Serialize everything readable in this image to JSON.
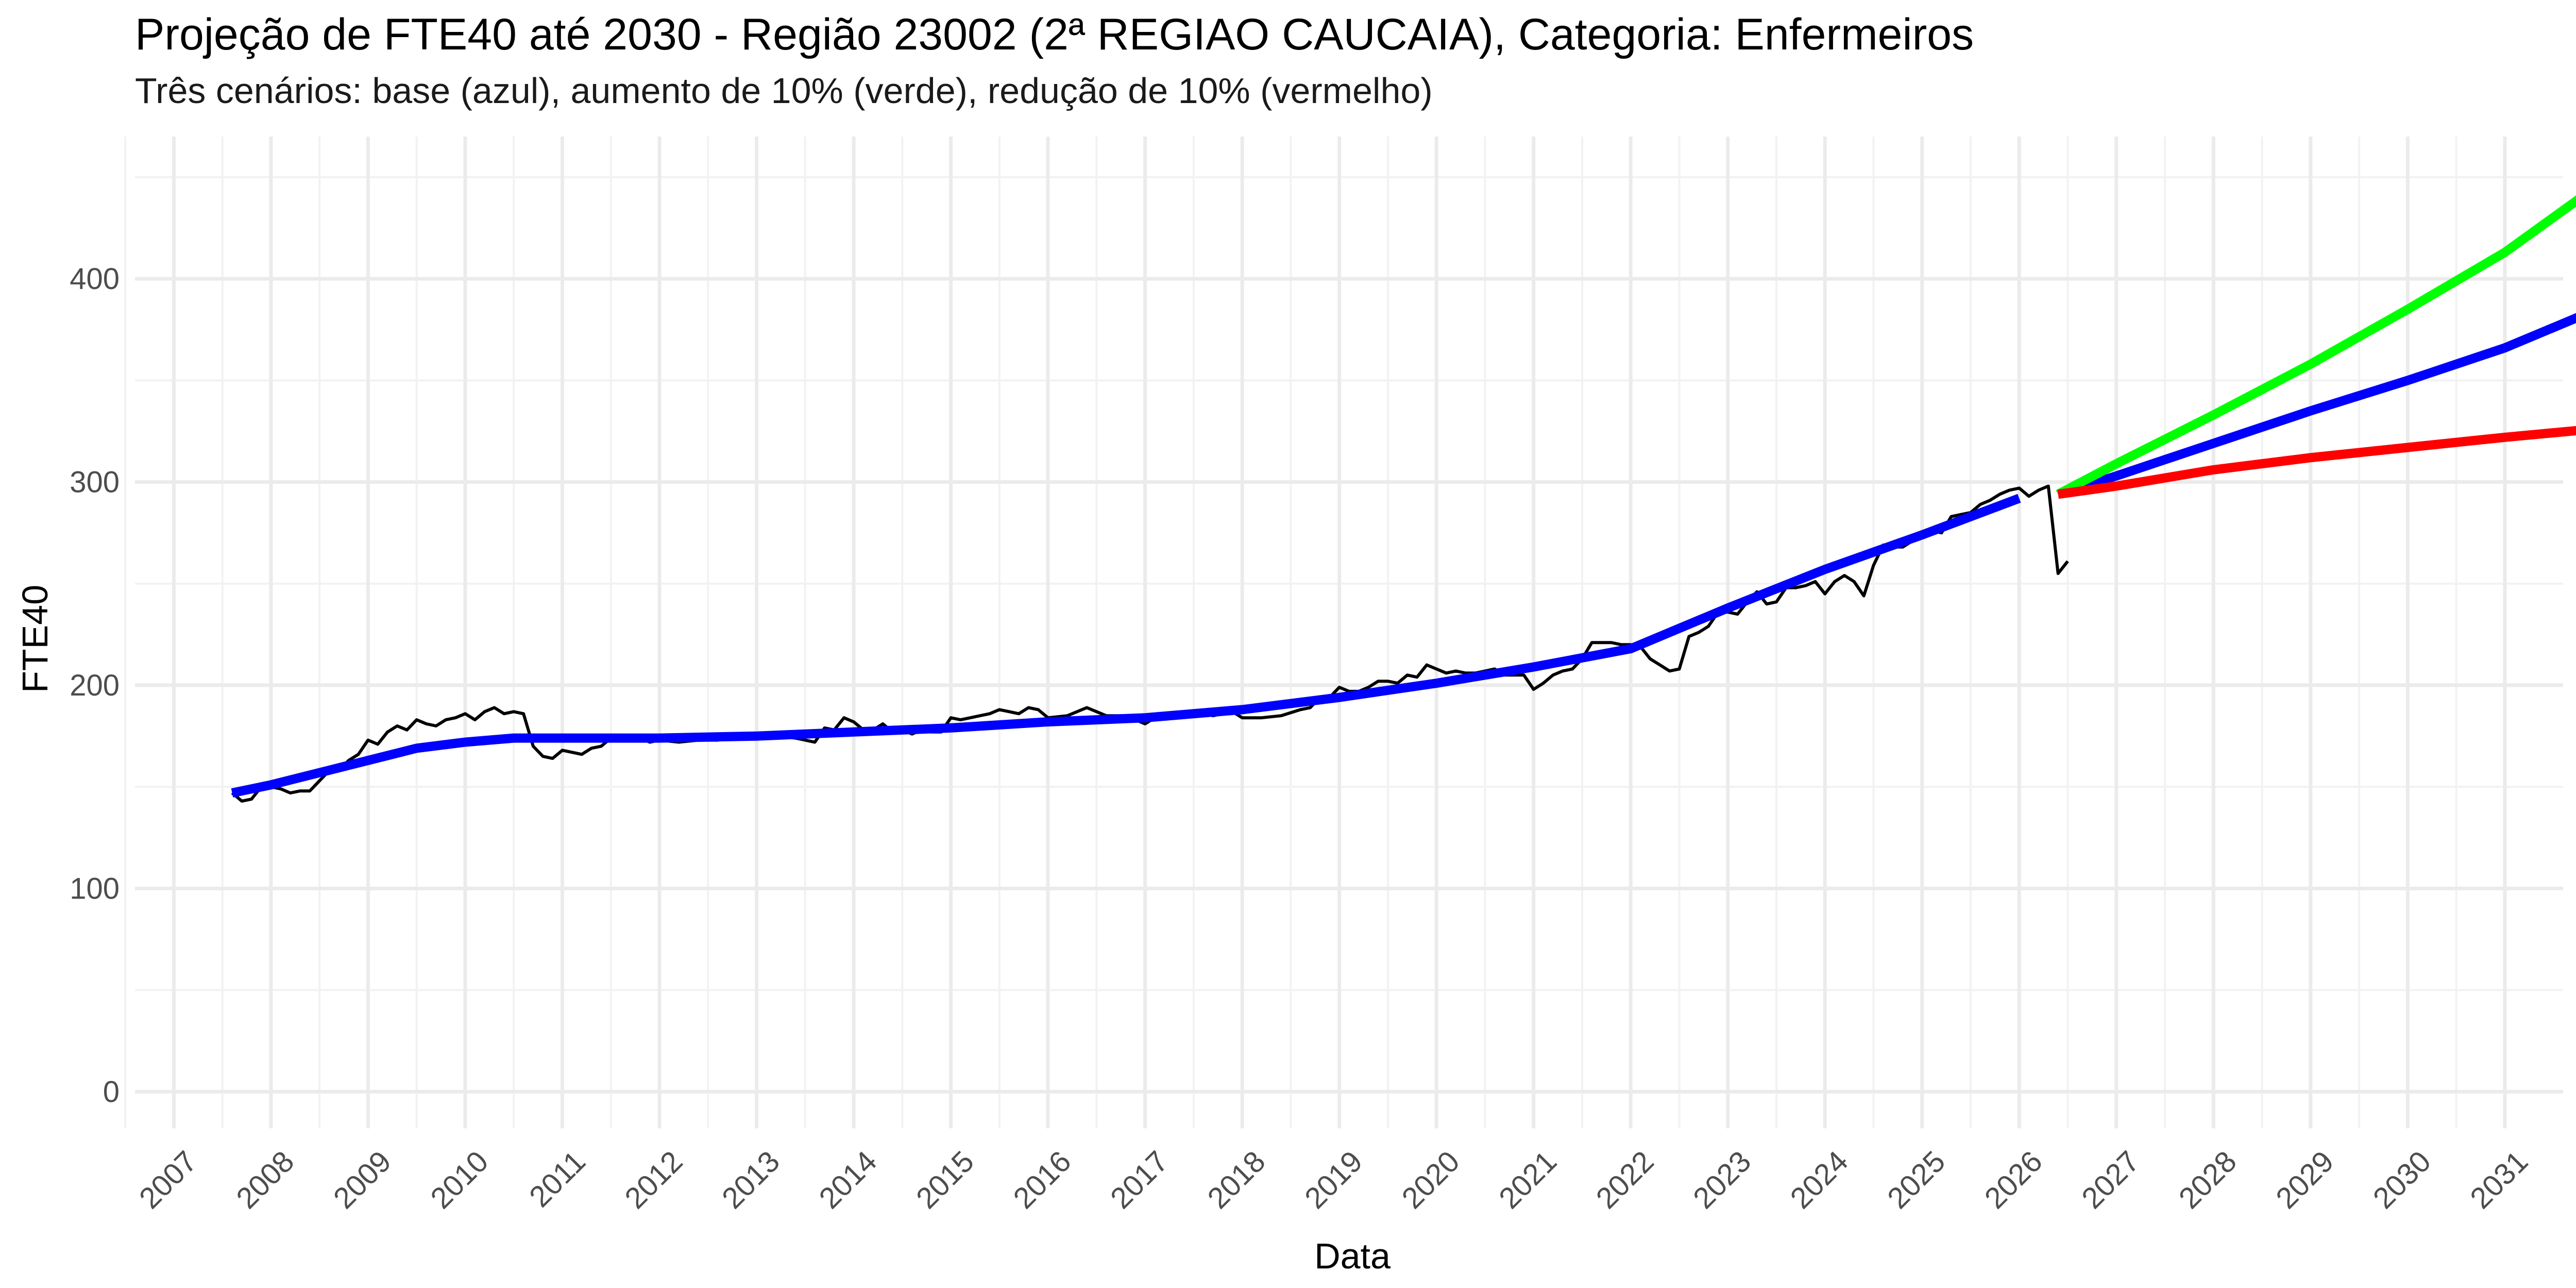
{
  "chart_data": {
    "type": "line",
    "title": "Projeção de FTE40 até 2030 - Região 23002 (2ª REGIAO CAUCAIA), Categoria: Enfermeiros",
    "subtitle": "Três cenários: base (azul), aumento de 10% (verde), redução de 10% (vermelho)",
    "xlabel": "Data",
    "ylabel": "FTE40",
    "xlim": [
      2006.6,
      2031.6
    ],
    "ylim": [
      -18,
      470
    ],
    "x_ticks": [
      2007,
      2008,
      2009,
      2010,
      2011,
      2012,
      2013,
      2014,
      2015,
      2016,
      2017,
      2018,
      2019,
      2020,
      2021,
      2022,
      2023,
      2024,
      2025,
      2026,
      2027,
      2028,
      2029,
      2030,
      2031
    ],
    "y_ticks": [
      0,
      100,
      200,
      300,
      400
    ],
    "grid": true,
    "legend": "none",
    "series": [
      {
        "color": "#000000",
        "line_width": "thin",
        "points": [
          [
            2007.6,
            147
          ],
          [
            2007.7,
            143
          ],
          [
            2007.8,
            144
          ],
          [
            2007.9,
            150
          ],
          [
            2008.0,
            150
          ],
          [
            2008.1,
            149
          ],
          [
            2008.2,
            147
          ],
          [
            2008.3,
            148
          ],
          [
            2008.4,
            148
          ],
          [
            2008.5,
            153
          ],
          [
            2008.6,
            158
          ],
          [
            2008.7,
            158
          ],
          [
            2008.8,
            163
          ],
          [
            2008.9,
            166
          ],
          [
            2009.0,
            173
          ],
          [
            2009.1,
            171
          ],
          [
            2009.2,
            177
          ],
          [
            2009.3,
            180
          ],
          [
            2009.4,
            178
          ],
          [
            2009.5,
            183
          ],
          [
            2009.6,
            181
          ],
          [
            2009.7,
            180
          ],
          [
            2009.8,
            183
          ],
          [
            2009.9,
            184
          ],
          [
            2010.0,
            186
          ],
          [
            2010.1,
            183
          ],
          [
            2010.2,
            187
          ],
          [
            2010.3,
            189
          ],
          [
            2010.4,
            186
          ],
          [
            2010.5,
            187
          ],
          [
            2010.6,
            186
          ],
          [
            2010.7,
            170
          ],
          [
            2010.8,
            165
          ],
          [
            2010.9,
            164
          ],
          [
            2011.0,
            168
          ],
          [
            2011.1,
            167
          ],
          [
            2011.2,
            166
          ],
          [
            2011.3,
            169
          ],
          [
            2011.4,
            170
          ],
          [
            2011.5,
            174
          ],
          [
            2011.6,
            173
          ],
          [
            2011.7,
            173
          ],
          [
            2011.8,
            174
          ],
          [
            2011.9,
            172
          ],
          [
            2012.0,
            173
          ],
          [
            2012.2,
            172
          ],
          [
            2012.4,
            173
          ],
          [
            2012.6,
            173
          ],
          [
            2012.8,
            175
          ],
          [
            2013.0,
            176
          ],
          [
            2013.2,
            175
          ],
          [
            2013.4,
            174
          ],
          [
            2013.5,
            173
          ],
          [
            2013.6,
            172
          ],
          [
            2013.7,
            179
          ],
          [
            2013.8,
            178
          ],
          [
            2013.9,
            184
          ],
          [
            2014.0,
            182
          ],
          [
            2014.1,
            178
          ],
          [
            2014.2,
            178
          ],
          [
            2014.3,
            181
          ],
          [
            2014.4,
            177
          ],
          [
            2014.5,
            178
          ],
          [
            2014.6,
            176
          ],
          [
            2014.7,
            178
          ],
          [
            2014.8,
            177
          ],
          [
            2014.9,
            177
          ],
          [
            2015.0,
            184
          ],
          [
            2015.1,
            183
          ],
          [
            2015.2,
            184
          ],
          [
            2015.3,
            185
          ],
          [
            2015.4,
            186
          ],
          [
            2015.5,
            188
          ],
          [
            2015.6,
            187
          ],
          [
            2015.7,
            186
          ],
          [
            2015.8,
            189
          ],
          [
            2015.9,
            188
          ],
          [
            2016.0,
            184
          ],
          [
            2016.2,
            185
          ],
          [
            2016.4,
            189
          ],
          [
            2016.6,
            185
          ],
          [
            2016.8,
            185
          ],
          [
            2016.9,
            183
          ],
          [
            2017.0,
            181
          ],
          [
            2017.1,
            184
          ],
          [
            2017.3,
            185
          ],
          [
            2017.5,
            187
          ],
          [
            2017.7,
            185
          ],
          [
            2017.9,
            187
          ],
          [
            2018.0,
            184
          ],
          [
            2018.2,
            184
          ],
          [
            2018.4,
            185
          ],
          [
            2018.6,
            188
          ],
          [
            2018.7,
            189
          ],
          [
            2018.8,
            194
          ],
          [
            2018.9,
            194
          ],
          [
            2019.0,
            199
          ],
          [
            2019.1,
            197
          ],
          [
            2019.2,
            197
          ],
          [
            2019.3,
            199
          ],
          [
            2019.4,
            202
          ],
          [
            2019.5,
            202
          ],
          [
            2019.6,
            201
          ],
          [
            2019.7,
            205
          ],
          [
            2019.8,
            204
          ],
          [
            2019.9,
            210
          ],
          [
            2020.0,
            208
          ],
          [
            2020.1,
            206
          ],
          [
            2020.2,
            207
          ],
          [
            2020.3,
            206
          ],
          [
            2020.4,
            206
          ],
          [
            2020.5,
            207
          ],
          [
            2020.6,
            208
          ],
          [
            2020.7,
            205
          ],
          [
            2020.8,
            205
          ],
          [
            2020.9,
            205
          ],
          [
            2021.0,
            198
          ],
          [
            2021.1,
            201
          ],
          [
            2021.2,
            205
          ],
          [
            2021.3,
            207
          ],
          [
            2021.4,
            208
          ],
          [
            2021.5,
            213
          ],
          [
            2021.6,
            221
          ],
          [
            2021.7,
            221
          ],
          [
            2021.8,
            221
          ],
          [
            2021.9,
            220
          ],
          [
            2022.0,
            220
          ],
          [
            2022.1,
            219
          ],
          [
            2022.2,
            213
          ],
          [
            2022.3,
            210
          ],
          [
            2022.4,
            207
          ],
          [
            2022.5,
            208
          ],
          [
            2022.6,
            224
          ],
          [
            2022.7,
            226
          ],
          [
            2022.8,
            229
          ],
          [
            2022.9,
            236
          ],
          [
            2023.0,
            236
          ],
          [
            2023.1,
            235
          ],
          [
            2023.2,
            241
          ],
          [
            2023.3,
            246
          ],
          [
            2023.4,
            240
          ],
          [
            2023.5,
            241
          ],
          [
            2023.6,
            248
          ],
          [
            2023.7,
            248
          ],
          [
            2023.8,
            249
          ],
          [
            2023.9,
            251
          ],
          [
            2024.0,
            245
          ],
          [
            2024.1,
            251
          ],
          [
            2024.2,
            254
          ],
          [
            2024.3,
            251
          ],
          [
            2024.4,
            244
          ],
          [
            2024.5,
            259
          ],
          [
            2024.6,
            269
          ],
          [
            2024.7,
            268
          ],
          [
            2024.8,
            268
          ],
          [
            2024.9,
            271
          ],
          [
            2025.0,
            275
          ],
          [
            2025.1,
            276
          ],
          [
            2025.2,
            275
          ],
          [
            2025.3,
            283
          ],
          [
            2025.4,
            284
          ],
          [
            2025.5,
            285
          ],
          [
            2025.6,
            289
          ],
          [
            2025.7,
            291
          ],
          [
            2025.8,
            294
          ],
          [
            2025.9,
            296
          ],
          [
            2026.0,
            297
          ],
          [
            2026.1,
            293
          ],
          [
            2026.2,
            296
          ],
          [
            2026.3,
            298
          ],
          [
            2026.4,
            255
          ],
          [
            2026.5,
            261
          ]
        ]
      },
      {
        "color": "#0000FF",
        "line_width": "thick",
        "points": [
          [
            2007.6,
            147
          ],
          [
            2008.0,
            151
          ],
          [
            2008.5,
            157
          ],
          [
            2009.0,
            163
          ],
          [
            2009.5,
            169
          ],
          [
            2010.0,
            172
          ],
          [
            2010.5,
            174
          ],
          [
            2011.0,
            174
          ],
          [
            2012.0,
            174
          ],
          [
            2013.0,
            175
          ],
          [
            2014.0,
            177
          ],
          [
            2015.0,
            179
          ],
          [
            2016.0,
            182
          ],
          [
            2017.0,
            184
          ],
          [
            2018.0,
            188
          ],
          [
            2019.0,
            194
          ],
          [
            2020.0,
            201
          ],
          [
            2021.0,
            209
          ],
          [
            2022.0,
            218
          ],
          [
            2023.0,
            238
          ],
          [
            2024.0,
            257
          ],
          [
            2025.0,
            274
          ],
          [
            2026.0,
            292
          ]
        ]
      },
      {
        "color": "#0000FF",
        "line_width": "thick",
        "points": [
          [
            2026.4,
            294
          ],
          [
            2027.0,
            303
          ],
          [
            2028.0,
            319
          ],
          [
            2029.0,
            335
          ],
          [
            2030.0,
            350
          ],
          [
            2031.0,
            366
          ],
          [
            2031.9,
            384
          ]
        ]
      },
      {
        "color": "#00FF00",
        "line_width": "thick",
        "points": [
          [
            2026.4,
            294
          ],
          [
            2027.0,
            309
          ],
          [
            2028.0,
            333
          ],
          [
            2029.0,
            358
          ],
          [
            2030.0,
            385
          ],
          [
            2031.0,
            413
          ],
          [
            2031.9,
            444
          ]
        ]
      },
      {
        "color": "#FF0000",
        "line_width": "thick",
        "points": [
          [
            2026.4,
            294
          ],
          [
            2027.0,
            298
          ],
          [
            2028.0,
            306
          ],
          [
            2029.0,
            312
          ],
          [
            2030.0,
            317
          ],
          [
            2031.0,
            322
          ],
          [
            2031.9,
            326
          ]
        ]
      }
    ]
  }
}
